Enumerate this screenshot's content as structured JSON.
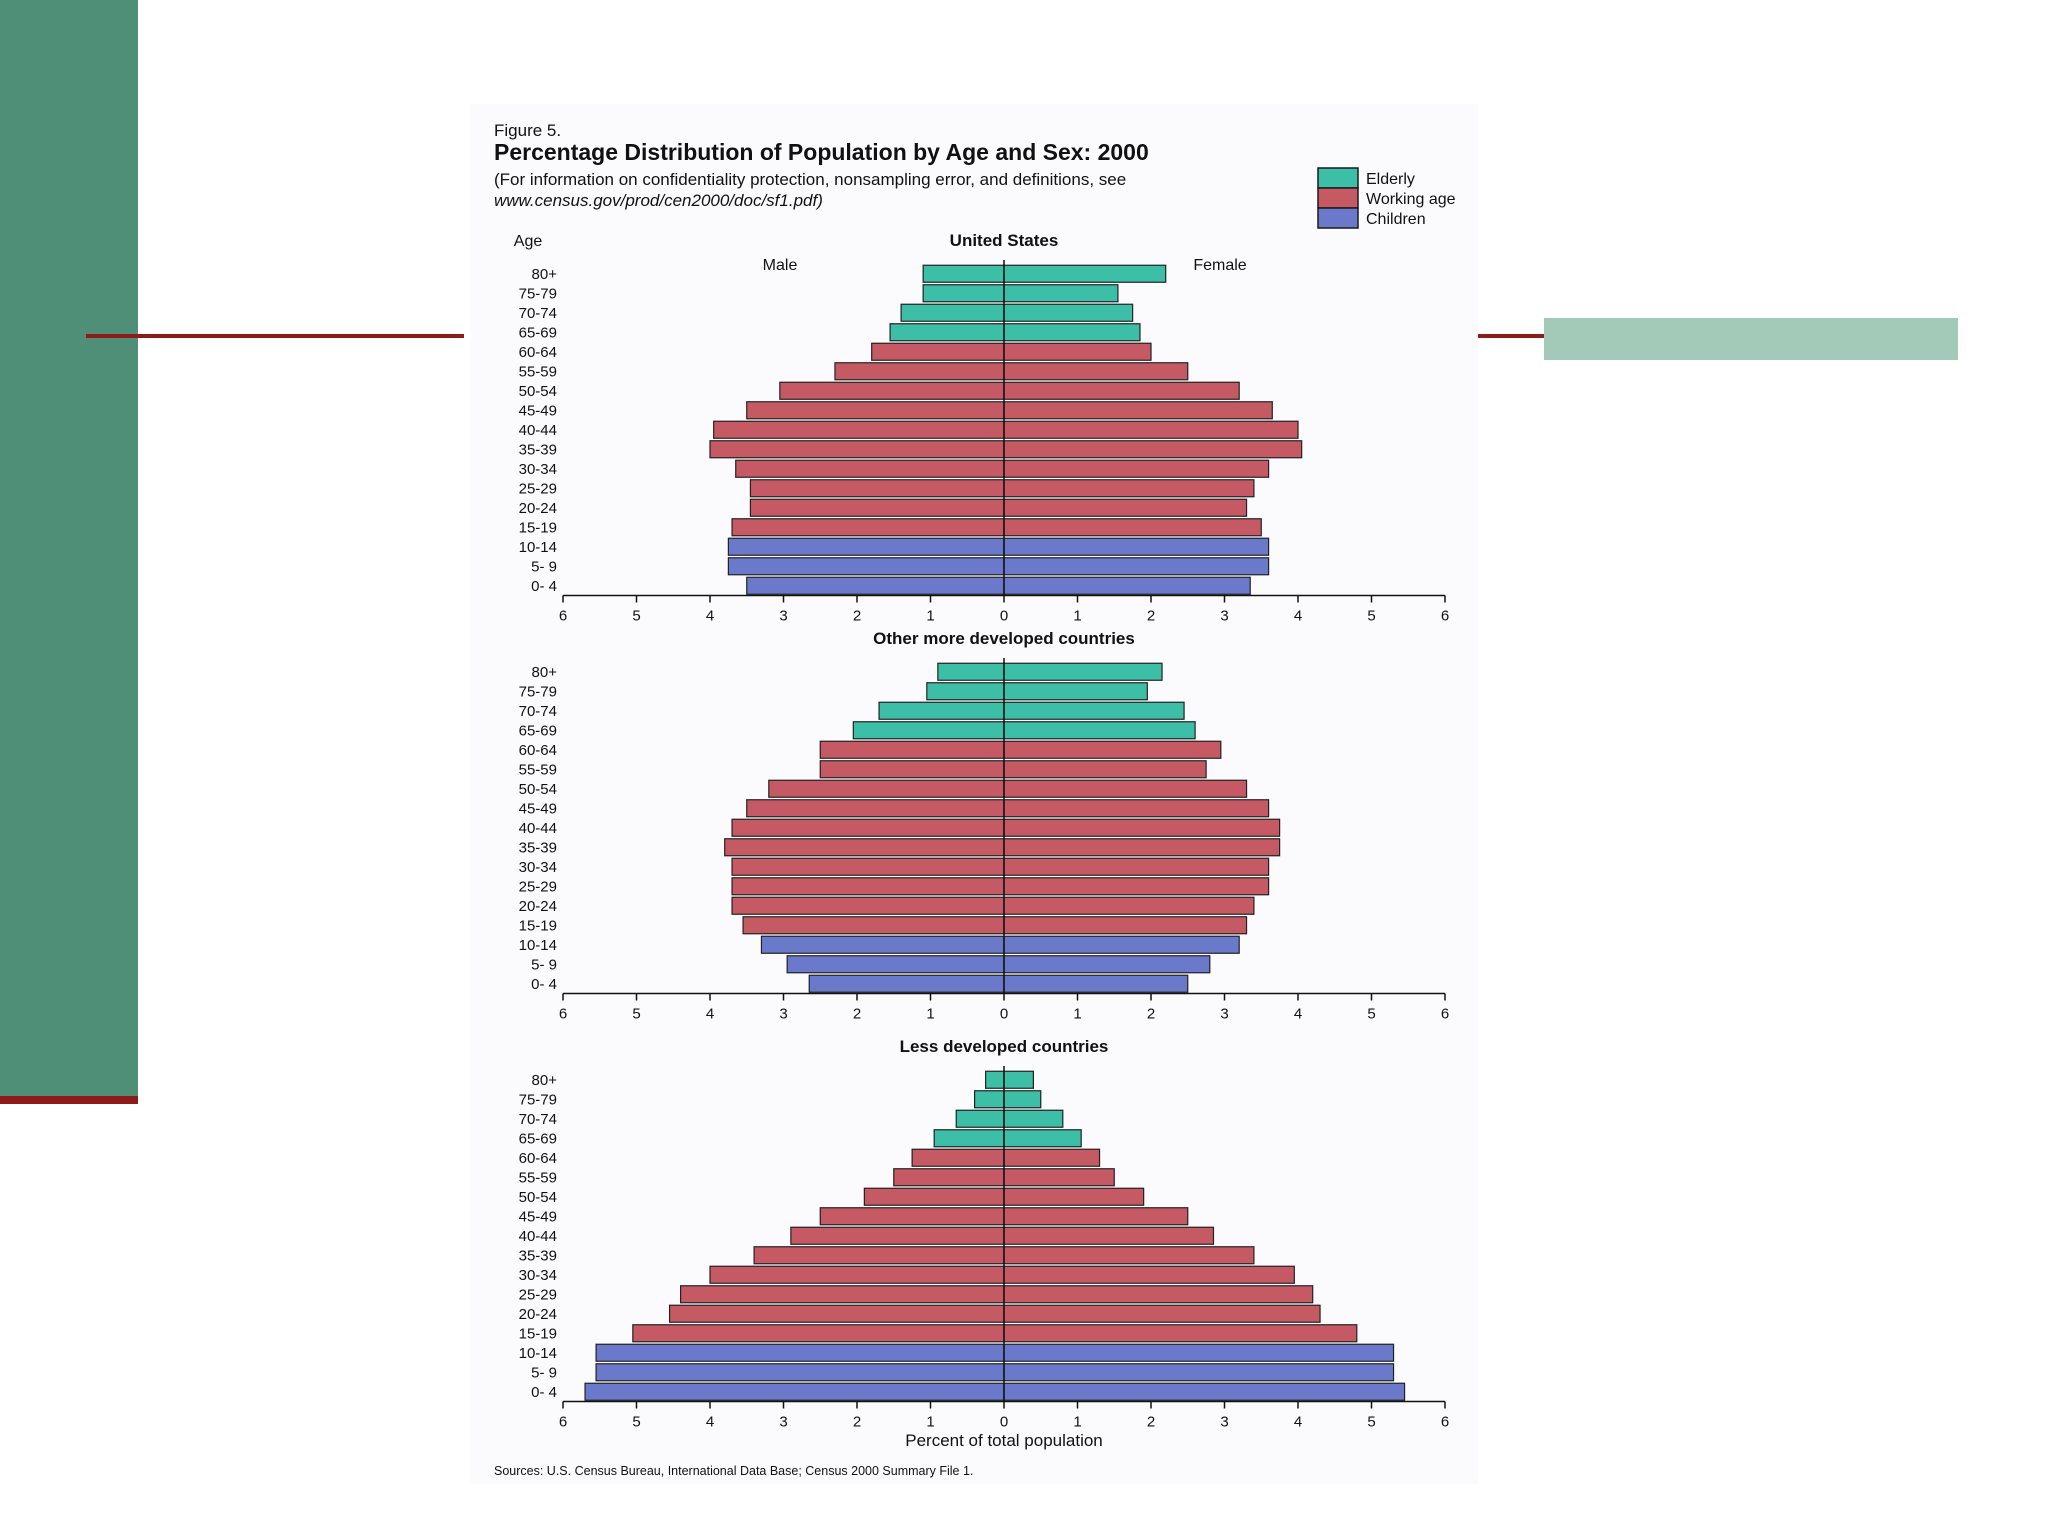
{
  "figure": {
    "label": "Figure 5.",
    "title": "Percentage Distribution of Population by Age and Sex:  2000",
    "note_line1": "(For information on confidentiality protection, nonsampling error, and definitions, see",
    "note_line2": "www.census.gov/prod/cen2000/doc/sf1.pdf)",
    "source": "Sources:  U.S. Census Bureau, International Data Base; Census 2000 Summary File 1."
  },
  "colors": {
    "title": "#2a48b0",
    "Elderly": "#3cbfa6",
    "Working age": "#c65a64",
    "Children": "#6a79c9"
  },
  "chart_data": {
    "type": "bar",
    "subtype": "population-pyramid",
    "legend": [
      "Elderly",
      "Working age",
      "Children"
    ],
    "legend_position": "top-right",
    "age_axis_label": "Age",
    "left_label": "Male",
    "right_label": "Female",
    "xlabel": "Percent of total population",
    "xlim": [
      -6,
      6
    ],
    "xticks": [
      6,
      5,
      4,
      3,
      2,
      1,
      0,
      1,
      2,
      3,
      4,
      5,
      6
    ],
    "categories": [
      "80+",
      "75-79",
      "70-74",
      "65-69",
      "60-64",
      "55-59",
      "50-54",
      "45-49",
      "40-44",
      "35-39",
      "30-34",
      "25-29",
      "20-24",
      "15-19",
      "10-14",
      "5- 9",
      "0- 4"
    ],
    "group_by_category": [
      "Elderly",
      "Elderly",
      "Elderly",
      "Elderly",
      "Working age",
      "Working age",
      "Working age",
      "Working age",
      "Working age",
      "Working age",
      "Working age",
      "Working age",
      "Working age",
      "Working age",
      "Children",
      "Children",
      "Children"
    ],
    "panels": [
      {
        "title": "United States",
        "male": [
          1.1,
          1.1,
          1.4,
          1.55,
          1.8,
          2.3,
          3.05,
          3.5,
          3.95,
          4.0,
          3.65,
          3.45,
          3.45,
          3.7,
          3.75,
          3.75,
          3.5
        ],
        "female": [
          2.2,
          1.55,
          1.75,
          1.85,
          2.0,
          2.5,
          3.2,
          3.65,
          4.0,
          4.05,
          3.6,
          3.4,
          3.3,
          3.5,
          3.6,
          3.6,
          3.35
        ]
      },
      {
        "title": "Other more developed countries",
        "male": [
          0.9,
          1.05,
          1.7,
          2.05,
          2.5,
          2.5,
          3.2,
          3.5,
          3.7,
          3.8,
          3.7,
          3.7,
          3.7,
          3.55,
          3.3,
          2.95,
          2.65
        ],
        "female": [
          2.15,
          1.95,
          2.45,
          2.6,
          2.95,
          2.75,
          3.3,
          3.6,
          3.75,
          3.75,
          3.6,
          3.6,
          3.4,
          3.3,
          3.2,
          2.8,
          2.5
        ]
      },
      {
        "title": "Less developed countries",
        "male": [
          0.25,
          0.4,
          0.65,
          0.95,
          1.25,
          1.5,
          1.9,
          2.5,
          2.9,
          3.4,
          4.0,
          4.4,
          4.55,
          5.05,
          5.55,
          5.55,
          5.7
        ],
        "female": [
          0.4,
          0.5,
          0.8,
          1.05,
          1.3,
          1.5,
          1.9,
          2.5,
          2.85,
          3.4,
          3.95,
          4.2,
          4.3,
          4.8,
          5.3,
          5.3,
          5.45
        ]
      }
    ]
  }
}
